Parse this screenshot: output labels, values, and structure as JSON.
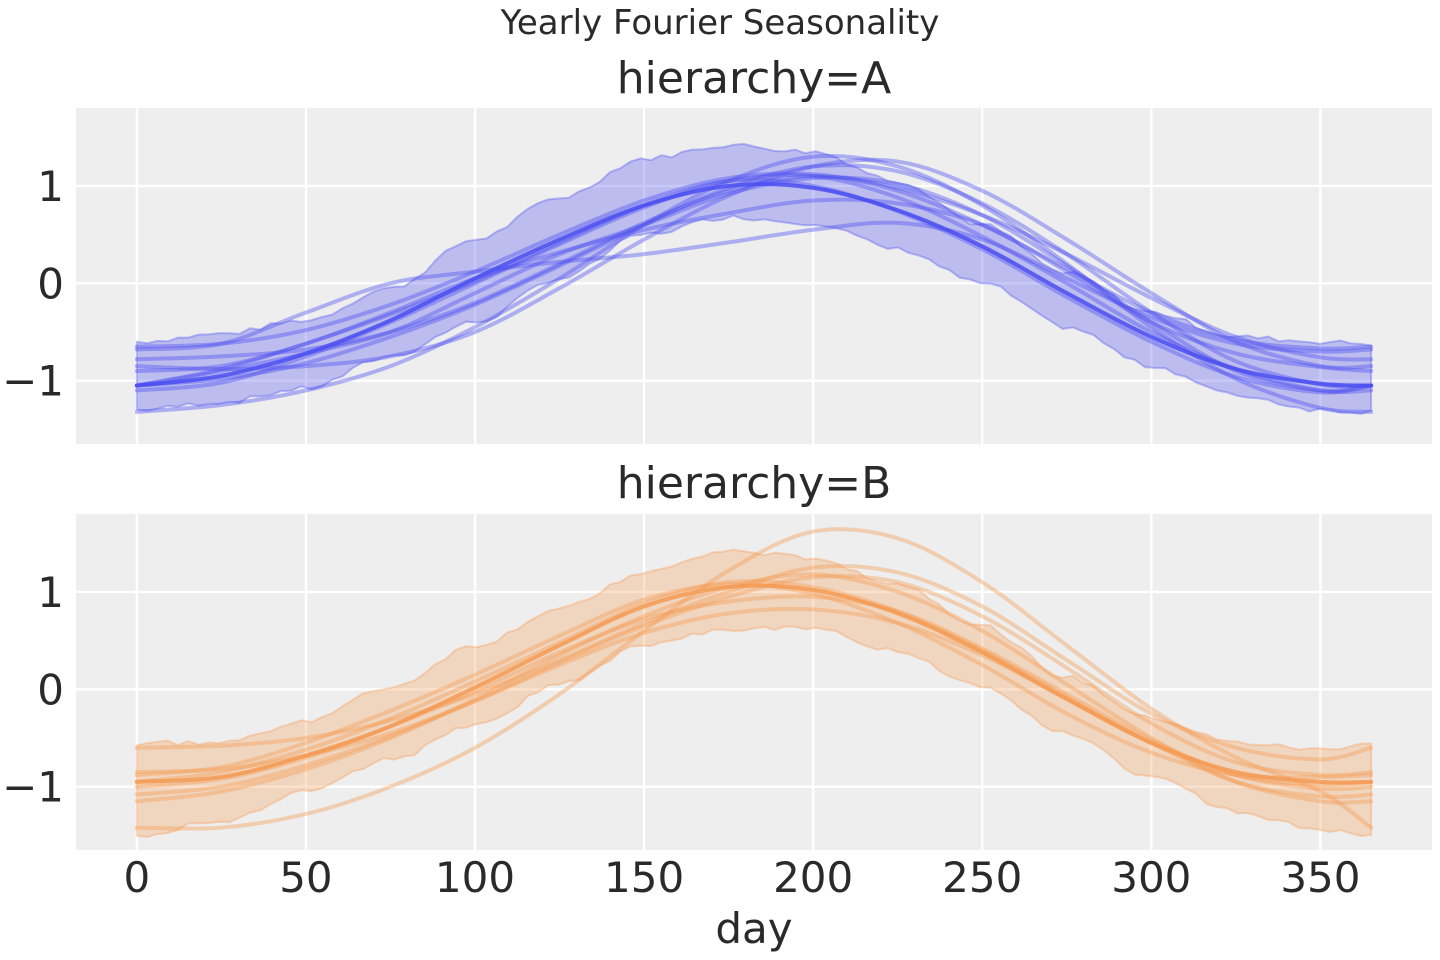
{
  "figure": {
    "suptitle": "Yearly Fourier Seasonality"
  },
  "chart_data": [
    {
      "type": "line",
      "title": "hierarchy=A",
      "xlabel": "",
      "ylabel": "",
      "xlim": [
        -18,
        383
      ],
      "ylim": [
        -1.65,
        1.8
      ],
      "xticks": [
        0,
        50,
        100,
        150,
        200,
        250,
        300,
        350
      ],
      "yticks": [
        -1,
        0,
        1
      ],
      "ytick_labels": [
        "−1",
        "0",
        "1"
      ],
      "grid": true,
      "color": "#4a4df0",
      "band": {
        "x": [
          0,
          25,
          50,
          75,
          100,
          125,
          150,
          175,
          200,
          225,
          250,
          275,
          300,
          325,
          350,
          365
        ],
        "lower": [
          -1.3,
          -1.22,
          -1.08,
          -0.75,
          -0.4,
          0.05,
          0.5,
          0.68,
          0.62,
          0.35,
          0.0,
          -0.45,
          -0.85,
          -1.15,
          -1.3,
          -1.32
        ],
        "upper": [
          -0.6,
          -0.52,
          -0.38,
          -0.05,
          0.45,
          0.88,
          1.28,
          1.42,
          1.35,
          1.05,
          0.6,
          0.1,
          -0.3,
          -0.55,
          -0.6,
          -0.62
        ]
      },
      "mean": {
        "x": [
          0,
          25,
          50,
          75,
          100,
          125,
          150,
          175,
          200,
          225,
          250,
          275,
          300,
          325,
          350,
          365
        ],
        "y": [
          -1.05,
          -0.95,
          -0.72,
          -0.38,
          0.05,
          0.45,
          0.8,
          1.0,
          0.98,
          0.75,
          0.38,
          -0.1,
          -0.55,
          -0.88,
          -1.03,
          -1.05
        ]
      },
      "samples": [
        {
          "x": [
            0,
            25,
            50,
            75,
            100,
            125,
            150,
            175,
            200,
            225,
            250,
            275,
            300,
            325,
            350,
            365
          ],
          "y": [
            -1.32,
            -1.25,
            -1.1,
            -0.85,
            -0.45,
            0.05,
            0.6,
            1.05,
            1.3,
            1.2,
            0.8,
            0.2,
            -0.45,
            -0.98,
            -1.28,
            -1.32
          ]
        },
        {
          "x": [
            0,
            25,
            50,
            75,
            100,
            125,
            150,
            175,
            200,
            225,
            250,
            275,
            300,
            325,
            350,
            365
          ],
          "y": [
            -0.65,
            -0.62,
            -0.48,
            -0.22,
            0.12,
            0.5,
            0.85,
            1.08,
            1.12,
            0.95,
            0.6,
            0.15,
            -0.3,
            -0.58,
            -0.67,
            -0.65
          ]
        },
        {
          "x": [
            0,
            25,
            50,
            75,
            100,
            125,
            150,
            175,
            200,
            225,
            250,
            275,
            300,
            325,
            350,
            365
          ],
          "y": [
            -0.78,
            -0.75,
            -0.68,
            -0.5,
            -0.2,
            0.2,
            0.62,
            0.95,
            1.1,
            0.98,
            0.7,
            0.3,
            -0.15,
            -0.55,
            -0.76,
            -0.78
          ]
        },
        {
          "x": [
            0,
            25,
            50,
            75,
            100,
            125,
            150,
            175,
            200,
            225,
            250,
            275,
            300,
            325,
            350,
            365
          ],
          "y": [
            -1.05,
            -0.98,
            -0.82,
            -0.55,
            -0.22,
            0.18,
            0.6,
            0.98,
            1.2,
            1.15,
            0.82,
            0.3,
            -0.3,
            -0.8,
            -1.04,
            -1.05
          ]
        },
        {
          "x": [
            0,
            25,
            50,
            75,
            100,
            125,
            150,
            175,
            200,
            225,
            250,
            275,
            300,
            325,
            350,
            365
          ],
          "y": [
            -1.05,
            -0.9,
            -0.72,
            -0.5,
            -0.1,
            0.3,
            0.6,
            0.92,
            1.08,
            1.02,
            0.7,
            0.18,
            -0.4,
            -0.9,
            -1.1,
            -1.05
          ]
        },
        {
          "x": [
            0,
            25,
            50,
            75,
            100,
            125,
            150,
            175,
            200,
            225,
            250,
            275,
            300,
            325,
            350,
            365
          ],
          "y": [
            -0.9,
            -0.85,
            -0.62,
            -0.3,
            0.05,
            0.32,
            0.55,
            0.72,
            0.85,
            0.82,
            0.6,
            0.12,
            -0.4,
            -0.72,
            -0.86,
            -0.9
          ]
        },
        {
          "x": [
            0,
            25,
            50,
            75,
            100,
            125,
            150,
            175,
            200,
            225,
            250,
            275,
            300,
            325,
            350,
            365
          ],
          "y": [
            -1.05,
            -0.88,
            -0.62,
            -0.32,
            0.02,
            0.42,
            0.8,
            1.05,
            1.0,
            0.74,
            0.35,
            -0.14,
            -0.6,
            -0.96,
            -1.12,
            -1.05
          ]
        },
        {
          "x": [
            0,
            25,
            50,
            75,
            100,
            125,
            150,
            175,
            200,
            225,
            250,
            275,
            300,
            325,
            350,
            365
          ],
          "y": [
            -1.1,
            -1.02,
            -0.75,
            -0.4,
            0.0,
            0.4,
            0.78,
            1.05,
            1.1,
            0.88,
            0.48,
            0.0,
            -0.5,
            -0.88,
            -1.1,
            -1.1
          ]
        },
        {
          "x": [
            0,
            25,
            50,
            75,
            100,
            125,
            150,
            175,
            200,
            225,
            250,
            275,
            300,
            325,
            350,
            365
          ],
          "y": [
            -0.68,
            -0.62,
            -0.3,
            0.0,
            0.12,
            0.22,
            0.3,
            0.42,
            0.55,
            0.62,
            0.45,
            0.05,
            -0.35,
            -0.62,
            -0.7,
            -0.68
          ]
        },
        {
          "x": [
            0,
            25,
            50,
            75,
            100,
            125,
            150,
            175,
            200,
            225,
            250,
            275,
            300,
            325,
            350,
            365
          ],
          "y": [
            -0.85,
            -0.88,
            -0.85,
            -0.75,
            -0.5,
            -0.05,
            0.45,
            0.9,
            1.2,
            1.25,
            0.95,
            0.45,
            -0.1,
            -0.6,
            -0.85,
            -0.85
          ]
        }
      ]
    },
    {
      "type": "line",
      "title": "hierarchy=B",
      "xlabel": "day",
      "ylabel": "",
      "xlim": [
        -18,
        383
      ],
      "ylim": [
        -1.65,
        1.8
      ],
      "xticks": [
        0,
        50,
        100,
        150,
        200,
        250,
        300,
        350
      ],
      "xtick_labels": [
        "0",
        "50",
        "100",
        "150",
        "200",
        "250",
        "300",
        "350"
      ],
      "yticks": [
        -1,
        0,
        1
      ],
      "ytick_labels": [
        "−1",
        "0",
        "1"
      ],
      "grid": true,
      "color": "#f59a52",
      "band": {
        "x": [
          0,
          25,
          50,
          75,
          100,
          125,
          150,
          175,
          200,
          225,
          250,
          275,
          300,
          325,
          350,
          365
        ],
        "lower": [
          -1.5,
          -1.35,
          -1.05,
          -0.72,
          -0.38,
          0.05,
          0.45,
          0.62,
          0.62,
          0.4,
          0.02,
          -0.45,
          -0.9,
          -1.25,
          -1.45,
          -1.5
        ],
        "upper": [
          -0.55,
          -0.55,
          -0.32,
          0.02,
          0.45,
          0.82,
          1.2,
          1.42,
          1.35,
          1.08,
          0.65,
          0.12,
          -0.3,
          -0.55,
          -0.62,
          -0.55
        ]
      },
      "mean": {
        "x": [
          0,
          25,
          50,
          75,
          100,
          125,
          150,
          175,
          200,
          225,
          250,
          275,
          300,
          325,
          350,
          365
        ],
        "y": [
          -0.95,
          -0.9,
          -0.68,
          -0.38,
          0.02,
          0.45,
          0.85,
          1.05,
          1.02,
          0.78,
          0.38,
          -0.1,
          -0.55,
          -0.85,
          -0.95,
          -0.95
        ]
      },
      "samples": [
        {
          "x": [
            0,
            25,
            50,
            75,
            100,
            125,
            150,
            175,
            200,
            225,
            250,
            275,
            300,
            325,
            350,
            365
          ],
          "y": [
            -1.42,
            -1.42,
            -1.28,
            -1.0,
            -0.6,
            -0.05,
            0.6,
            1.22,
            1.62,
            1.55,
            1.1,
            0.45,
            -0.2,
            -0.7,
            -1.05,
            -1.42
          ]
        },
        {
          "x": [
            0,
            25,
            50,
            75,
            100,
            125,
            150,
            175,
            200,
            225,
            250,
            275,
            300,
            325,
            350,
            365
          ],
          "y": [
            -0.6,
            -0.58,
            -0.5,
            -0.32,
            -0.05,
            0.3,
            0.68,
            1.0,
            1.25,
            1.2,
            0.85,
            0.3,
            -0.25,
            -0.6,
            -0.72,
            -0.6
          ]
        },
        {
          "x": [
            0,
            25,
            50,
            75,
            100,
            125,
            150,
            175,
            200,
            225,
            250,
            275,
            300,
            325,
            350,
            365
          ],
          "y": [
            -0.85,
            -0.82,
            -0.68,
            -0.45,
            -0.12,
            0.28,
            0.65,
            0.95,
            1.15,
            1.1,
            0.75,
            0.22,
            -0.35,
            -0.75,
            -0.88,
            -0.85
          ]
        },
        {
          "x": [
            0,
            25,
            50,
            75,
            100,
            125,
            150,
            175,
            200,
            225,
            250,
            275,
            300,
            325,
            350,
            365
          ],
          "y": [
            -1.15,
            -1.05,
            -0.82,
            -0.5,
            -0.1,
            0.35,
            0.75,
            1.05,
            1.18,
            1.0,
            0.6,
            0.05,
            -0.5,
            -0.95,
            -1.15,
            -1.15
          ]
        },
        {
          "x": [
            0,
            25,
            50,
            75,
            100,
            125,
            150,
            175,
            200,
            225,
            250,
            275,
            300,
            325,
            350,
            365
          ],
          "y": [
            -1.0,
            -0.92,
            -0.7,
            -0.38,
            -0.02,
            0.38,
            0.72,
            0.9,
            0.95,
            0.8,
            0.42,
            -0.05,
            -0.52,
            -0.88,
            -1.02,
            -1.0
          ]
        },
        {
          "x": [
            0,
            25,
            50,
            75,
            100,
            125,
            150,
            175,
            200,
            225,
            250,
            275,
            300,
            325,
            350,
            365
          ],
          "y": [
            -0.95,
            -0.85,
            -0.62,
            -0.3,
            0.08,
            0.48,
            0.88,
            1.1,
            1.05,
            0.8,
            0.4,
            -0.08,
            -0.55,
            -0.88,
            -0.98,
            -0.95
          ]
        },
        {
          "x": [
            0,
            25,
            50,
            75,
            100,
            125,
            150,
            175,
            200,
            225,
            250,
            275,
            300,
            325,
            350,
            365
          ],
          "y": [
            -1.08,
            -1.0,
            -0.78,
            -0.48,
            -0.12,
            0.25,
            0.58,
            0.78,
            0.82,
            0.68,
            0.35,
            -0.1,
            -0.55,
            -0.95,
            -1.1,
            -1.08
          ]
        },
        {
          "x": [
            0,
            25,
            50,
            75,
            100,
            125,
            150,
            175,
            200,
            225,
            250,
            275,
            300,
            325,
            350,
            365
          ],
          "y": [
            -0.88,
            -0.8,
            -0.55,
            -0.22,
            0.15,
            0.55,
            0.92,
            1.08,
            0.98,
            0.68,
            0.25,
            -0.25,
            -0.65,
            -0.88,
            -0.9,
            -0.88
          ]
        }
      ]
    }
  ]
}
